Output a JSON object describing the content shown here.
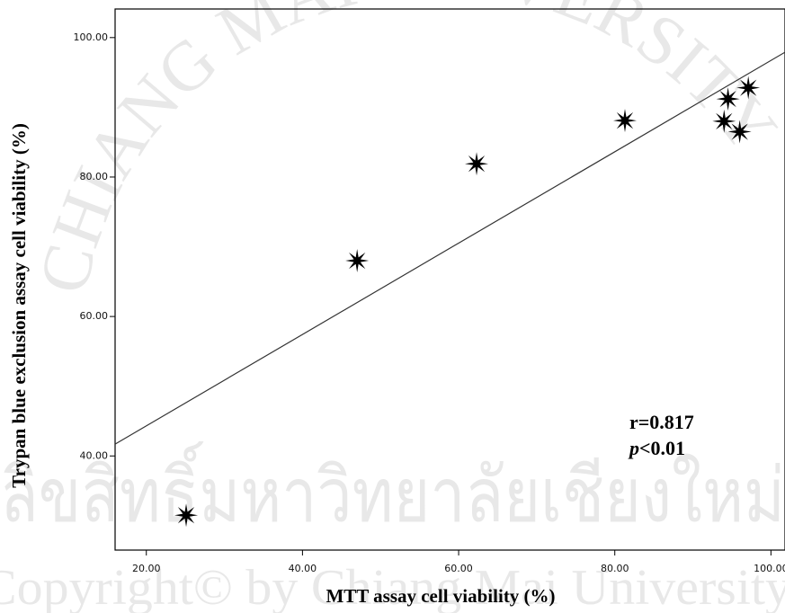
{
  "chart_data": {
    "type": "scatter",
    "x_label": "MTT assay cell viability (%)",
    "y_label": "Trypan blue exclusion assay cell viability (%)",
    "x": [
      25.1,
      47.0,
      62.3,
      81.3,
      94.0,
      94.5,
      96.0,
      97.1
    ],
    "y": [
      31.5,
      68.0,
      81.9,
      88.1,
      88.0,
      91.2,
      86.5,
      92.8
    ],
    "color": "#000000",
    "fit_line": {
      "x": [
        16.0,
        101.8
      ],
      "y": [
        41.7,
        97.9
      ]
    },
    "xlim": [
      16.0,
      101.8
    ],
    "ylim": [
      26.5,
      104.1
    ],
    "xticks": [
      {
        "value": 20,
        "label": "20.00"
      },
      {
        "value": 40,
        "label": "40.00"
      },
      {
        "value": 60,
        "label": "60.00"
      },
      {
        "value": 80,
        "label": "80.00"
      },
      {
        "value": 100,
        "label": "100.00"
      }
    ],
    "yticks": [
      {
        "value": 40,
        "label": "40.00"
      },
      {
        "value": 60,
        "label": "60.00"
      },
      {
        "value": 80,
        "label": "80.00"
      },
      {
        "value": 100,
        "label": "100.00"
      }
    ],
    "annotations": [
      {
        "text": "r=0.817"
      },
      {
        "italic": "p",
        "text": "<0.01"
      }
    ],
    "watermark": [
      "CHIANG MAI UNIVERSITY",
      "ลิขสิทธิ์มหาวิทยาลัยเชียงใหม่",
      "Copyright© by Chiang Mai University"
    ]
  }
}
